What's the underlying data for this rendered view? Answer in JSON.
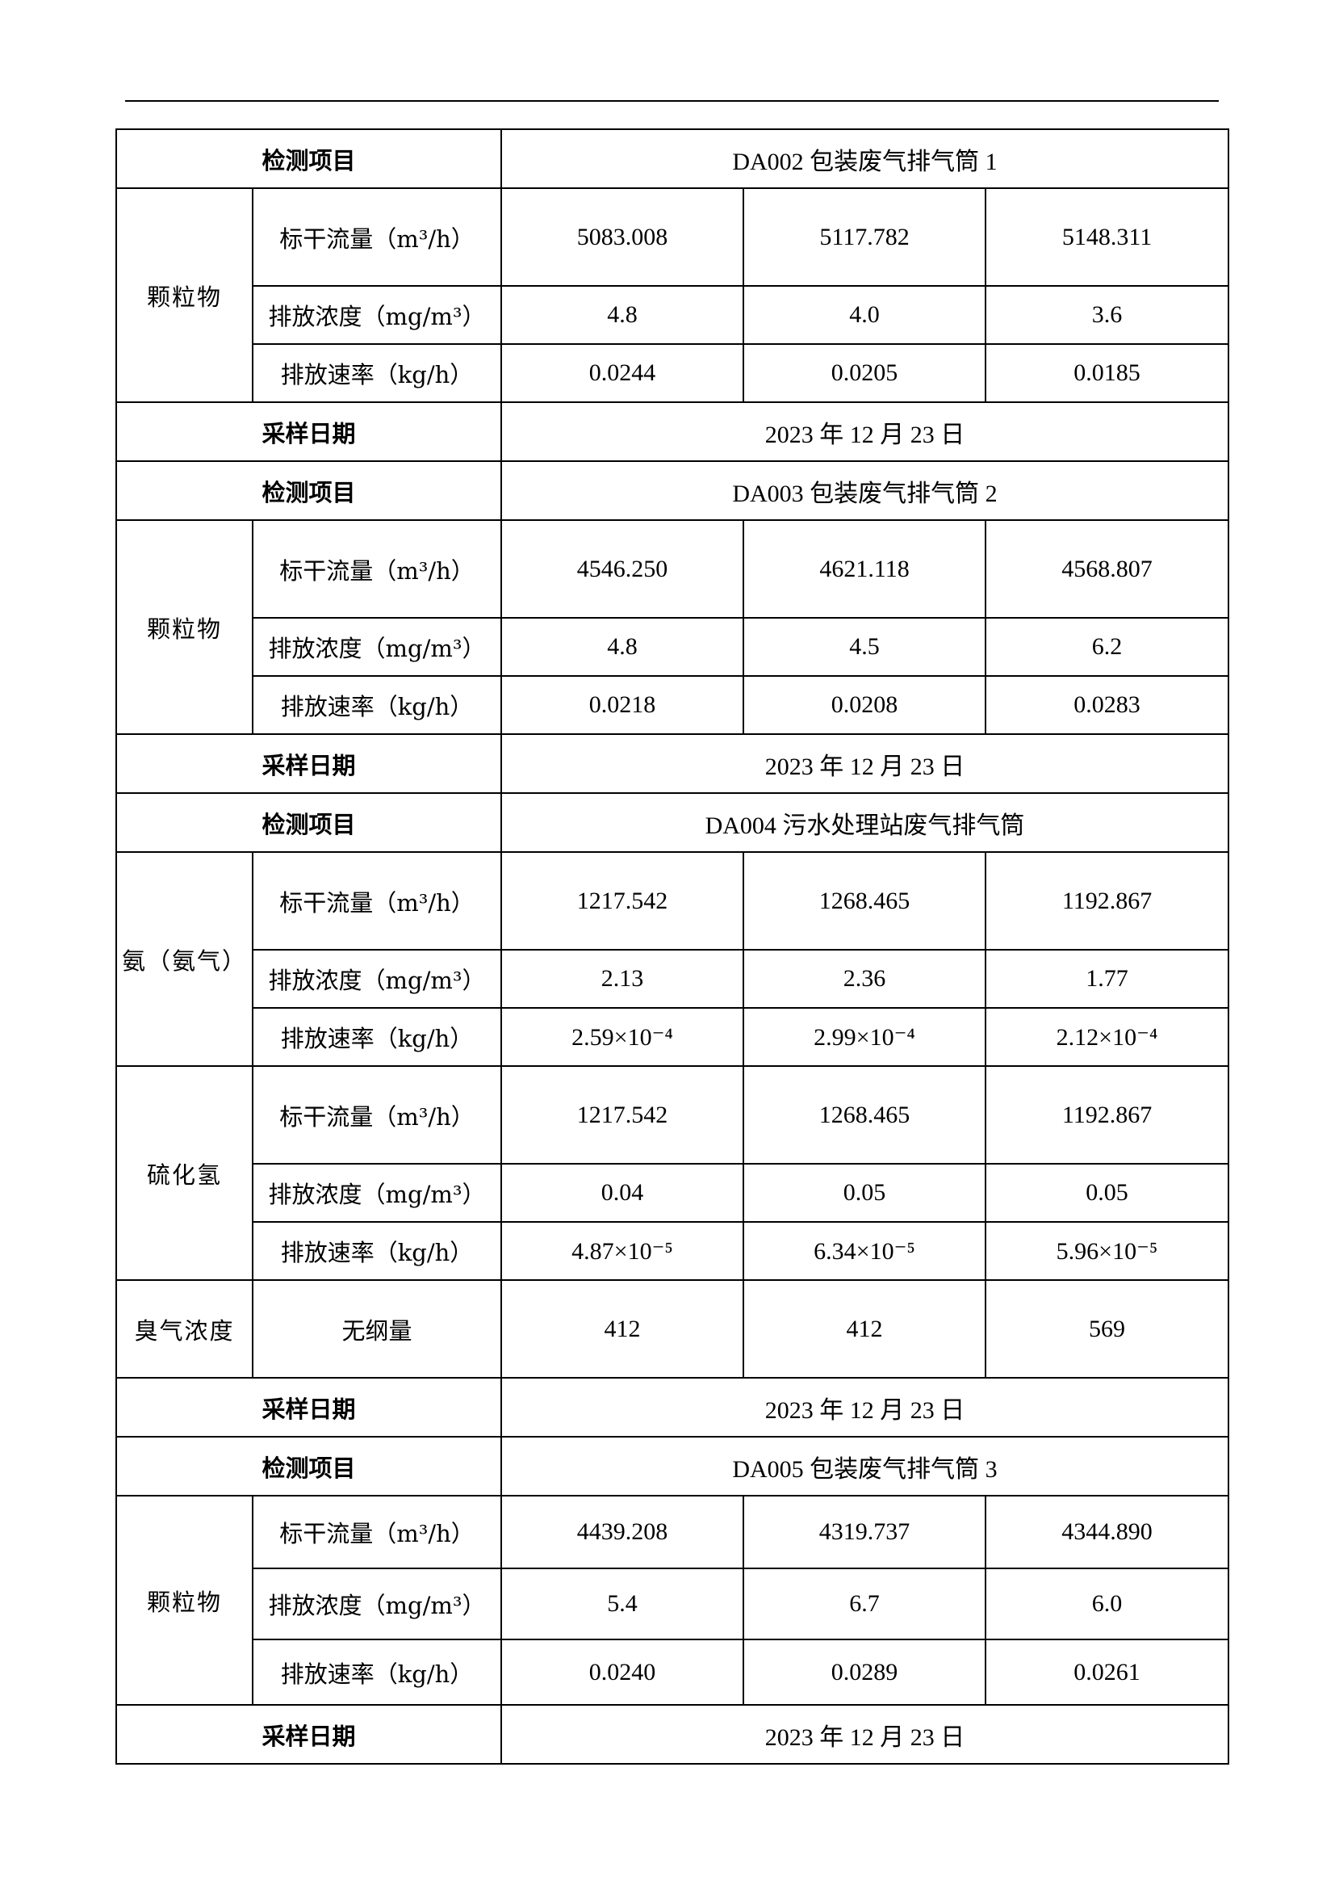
{
  "sections": [
    {
      "item_label": "检测项目",
      "item_value": "DA002 包装废气排气筒 1",
      "groups": [
        {
          "name": "颗粒物",
          "rows": [
            {
              "param": "标干流量（m³/h）",
              "values": [
                "5083.008",
                "5117.782",
                "5148.311"
              ]
            },
            {
              "param": "排放浓度（mg/m³）",
              "values": [
                "4.8",
                "4.0",
                "3.6"
              ]
            },
            {
              "param": "排放速率（kg/h）",
              "values": [
                "0.0244",
                "0.0205",
                "0.0185"
              ]
            }
          ]
        }
      ],
      "date_label": "采样日期",
      "date_value": "2023 年 12 月 23 日"
    },
    {
      "item_label": "检测项目",
      "item_value": "DA003 包装废气排气筒 2",
      "groups": [
        {
          "name": "颗粒物",
          "rows": [
            {
              "param": "标干流量（m³/h）",
              "values": [
                "4546.250",
                "4621.118",
                "4568.807"
              ]
            },
            {
              "param": "排放浓度（mg/m³）",
              "values": [
                "4.8",
                "4.5",
                "6.2"
              ]
            },
            {
              "param": "排放速率（kg/h）",
              "values": [
                "0.0218",
                "0.0208",
                "0.0283"
              ]
            }
          ]
        }
      ],
      "date_label": "采样日期",
      "date_value": "2023 年 12 月 23 日"
    },
    {
      "item_label": "检测项目",
      "item_value": "DA004 污水处理站废气排气筒",
      "groups": [
        {
          "name": "氨（氨气）",
          "rows": [
            {
              "param": "标干流量（m³/h）",
              "values": [
                "1217.542",
                "1268.465",
                "1192.867"
              ]
            },
            {
              "param": "排放浓度（mg/m³）",
              "values": [
                "2.13",
                "2.36",
                "1.77"
              ]
            },
            {
              "param": "排放速率（kg/h）",
              "values": [
                "2.59×10⁻⁴",
                "2.99×10⁻⁴",
                "2.12×10⁻⁴"
              ]
            }
          ]
        },
        {
          "name": "硫化氢",
          "rows": [
            {
              "param": "标干流量（m³/h）",
              "values": [
                "1217.542",
                "1268.465",
                "1192.867"
              ]
            },
            {
              "param": "排放浓度（mg/m³）",
              "values": [
                "0.04",
                "0.05",
                "0.05"
              ]
            },
            {
              "param": "排放速率（kg/h）",
              "values": [
                "4.87×10⁻⁵",
                "6.34×10⁻⁵",
                "5.96×10⁻⁵"
              ]
            }
          ]
        },
        {
          "name": "臭气浓度",
          "rows": [
            {
              "param": "无纲量",
              "values": [
                "412",
                "412",
                "569"
              ]
            }
          ]
        }
      ],
      "date_label": "采样日期",
      "date_value": "2023 年 12 月 23 日"
    },
    {
      "item_label": "检测项目",
      "item_value": "DA005 包装废气排气筒 3",
      "groups": [
        {
          "name": "颗粒物",
          "rows": [
            {
              "param": "标干流量（m³/h）",
              "values": [
                "4439.208",
                "4319.737",
                "4344.890"
              ]
            },
            {
              "param": "排放浓度（mg/m³）",
              "values": [
                "5.4",
                "6.7",
                "6.0"
              ]
            },
            {
              "param": "排放速率（kg/h）",
              "values": [
                "0.0240",
                "0.0289",
                "0.0261"
              ]
            }
          ]
        }
      ],
      "date_label": "采样日期",
      "date_value": "2023 年 12 月 23 日"
    }
  ]
}
